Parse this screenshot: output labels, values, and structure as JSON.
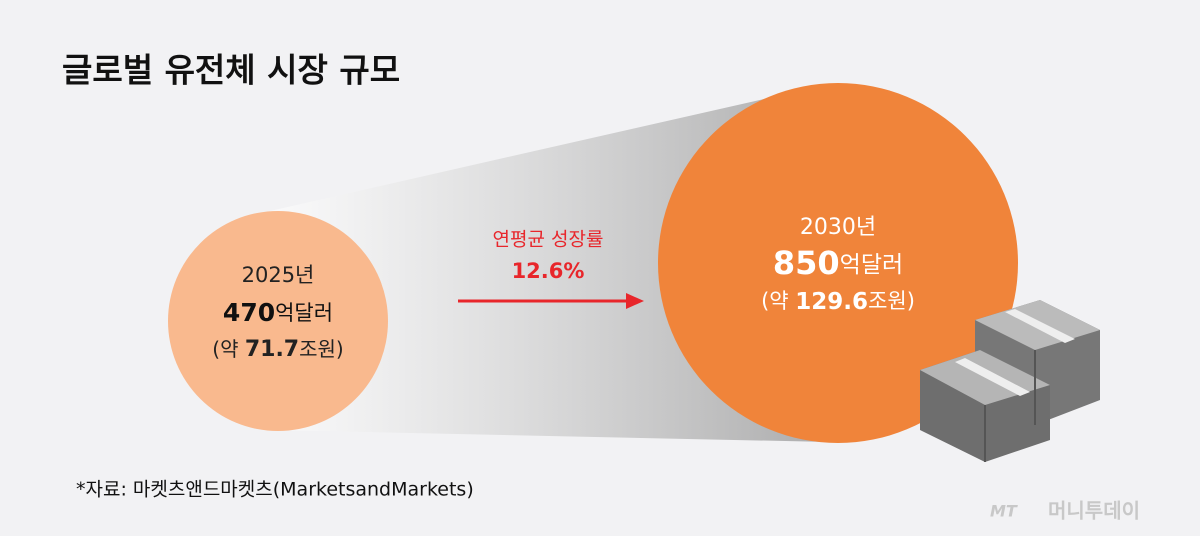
{
  "title": "글로벌 유전체 시장 규모",
  "left": {
    "year": "2025년",
    "amount": "470",
    "unit": "억달러",
    "krw_prefix": "(약",
    "krw_amount": "71.7",
    "krw_suffix": "조원)"
  },
  "growth": {
    "label": "연평균 성장률",
    "rate": "12.6%"
  },
  "right": {
    "year": "2030년",
    "amount": "850",
    "unit": "억달러",
    "krw_prefix": "(약",
    "krw_amount": "129.6",
    "krw_suffix": "조원)"
  },
  "source": "*자료: 마켓츠앤드마켓츠(MarketsandMarkets)",
  "logo": {
    "mark": "MT",
    "name": "머니투데이"
  }
}
